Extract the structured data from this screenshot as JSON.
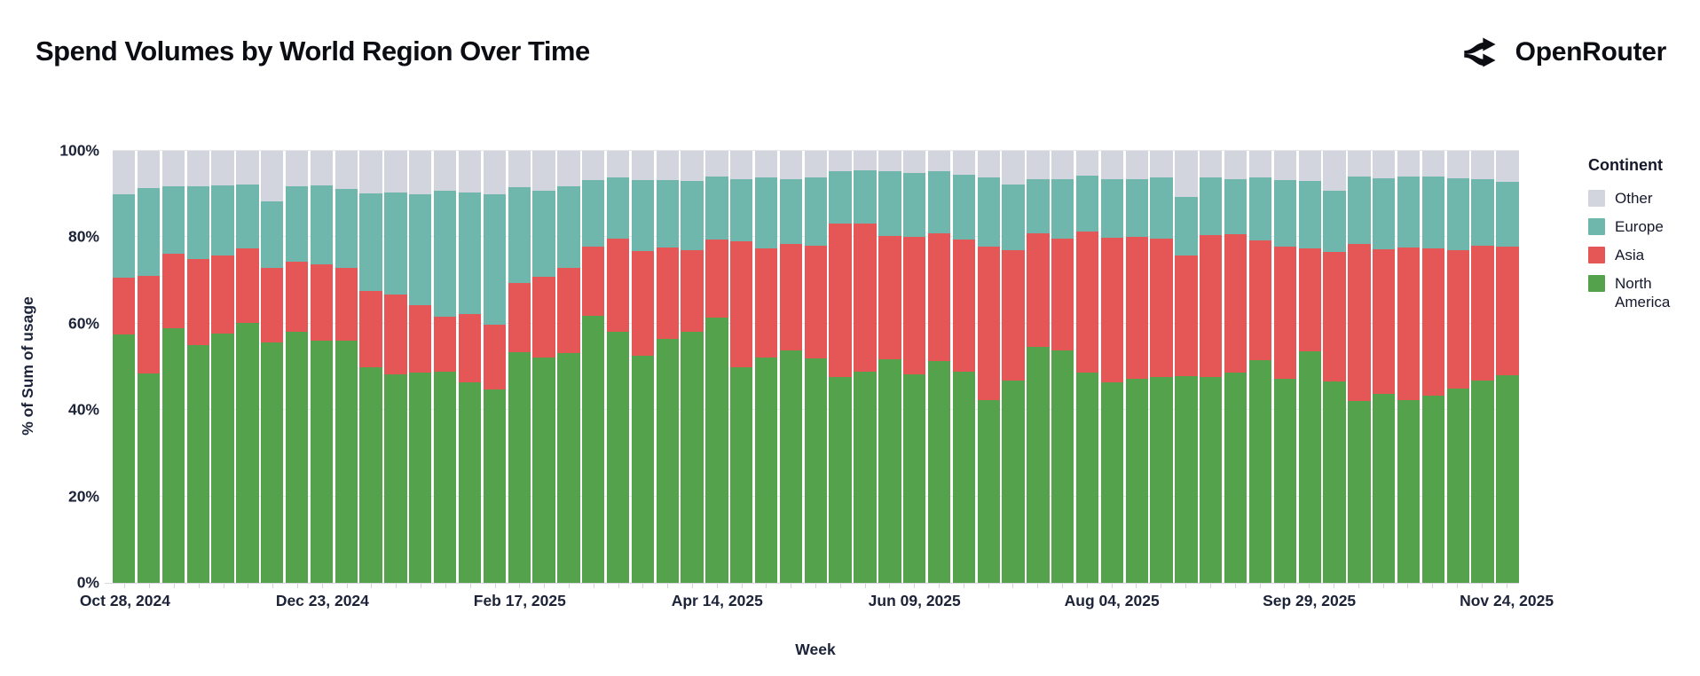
{
  "header": {
    "title": "Spend Volumes by World Region Over Time",
    "brand": {
      "name": "OpenRouter"
    }
  },
  "axes": {
    "y_title": "% of Sum of usage",
    "x_title": "Week",
    "y_ticks": [
      {
        "value": 0,
        "label": "0%"
      },
      {
        "value": 20,
        "label": "20%"
      },
      {
        "value": 40,
        "label": "40%"
      },
      {
        "value": 60,
        "label": "60%"
      },
      {
        "value": 80,
        "label": "80%"
      },
      {
        "value": 100,
        "label": "100%"
      }
    ],
    "x_visible_ticks": [
      {
        "index": 0,
        "label": "Oct 28, 2024"
      },
      {
        "index": 8,
        "label": "Dec 23, 2024"
      },
      {
        "index": 16,
        "label": "Feb 17, 2025"
      },
      {
        "index": 24,
        "label": "Apr 14, 2025"
      },
      {
        "index": 32,
        "label": "Jun 09, 2025"
      },
      {
        "index": 40,
        "label": "Aug 04, 2025"
      },
      {
        "index": 48,
        "label": "Sep 29, 2025"
      },
      {
        "index": 56,
        "label": "Nov 24, 2025"
      }
    ]
  },
  "legend": {
    "title": "Continent",
    "items": [
      {
        "label": "Other",
        "color": "#d2d4de"
      },
      {
        "label": "Europe",
        "color": "#6fb7ad"
      },
      {
        "label": "Asia",
        "color": "#e45756"
      },
      {
        "label": "North America",
        "color": "#54a24b"
      }
    ]
  },
  "colors": {
    "north_america": "#54a24b",
    "asia": "#e45756",
    "europe": "#6fb7ad",
    "other": "#d2d4de",
    "gridline": "#e7e7ec",
    "axis_text": "#1c2338"
  },
  "chart_data": {
    "type": "bar",
    "stacked": true,
    "title": "Spend Volumes by World Region Over Time",
    "xlabel": "Week",
    "ylabel": "% of Sum of usage",
    "ylim": [
      0,
      100
    ],
    "y_unit": "percent",
    "grid": true,
    "legend_title": "Continent",
    "legend_position": "right",
    "stack_order_bottom_to_top": [
      "North America",
      "Asia",
      "Europe",
      "Other"
    ],
    "categories": [
      "Oct 28, 2024",
      "Nov 04, 2024",
      "Nov 11, 2024",
      "Nov 18, 2024",
      "Nov 25, 2024",
      "Dec 02, 2024",
      "Dec 09, 2024",
      "Dec 16, 2024",
      "Dec 23, 2024",
      "Dec 30, 2024",
      "Jan 06, 2025",
      "Jan 13, 2025",
      "Jan 20, 2025",
      "Jan 27, 2025",
      "Feb 03, 2025",
      "Feb 10, 2025",
      "Feb 17, 2025",
      "Feb 24, 2025",
      "Mar 03, 2025",
      "Mar 10, 2025",
      "Mar 17, 2025",
      "Mar 24, 2025",
      "Mar 31, 2025",
      "Apr 07, 2025",
      "Apr 14, 2025",
      "Apr 21, 2025",
      "Apr 28, 2025",
      "May 05, 2025",
      "May 12, 2025",
      "May 19, 2025",
      "May 26, 2025",
      "Jun 02, 2025",
      "Jun 09, 2025",
      "Jun 16, 2025",
      "Jun 23, 2025",
      "Jun 30, 2025",
      "Jul 07, 2025",
      "Jul 14, 2025",
      "Jul 21, 2025",
      "Jul 28, 2025",
      "Aug 04, 2025",
      "Aug 11, 2025",
      "Aug 18, 2025",
      "Aug 25, 2025",
      "Sep 01, 2025",
      "Sep 08, 2025",
      "Sep 15, 2025",
      "Sep 22, 2025",
      "Sep 29, 2025",
      "Oct 06, 2025",
      "Oct 13, 2025",
      "Oct 20, 2025",
      "Oct 27, 2025",
      "Nov 03, 2025",
      "Nov 10, 2025",
      "Nov 17, 2025",
      "Nov 24, 2025"
    ],
    "series": [
      {
        "name": "North America",
        "color": "#54a24b",
        "values": [
          57.6,
          48.5,
          59.0,
          55.0,
          57.7,
          60.2,
          55.7,
          58.1,
          56.1,
          56.0,
          50.0,
          48.2,
          48.7,
          48.8,
          46.5,
          44.7,
          53.3,
          52.2,
          53.2,
          61.9,
          58.1,
          52.6,
          56.5,
          58.2,
          61.4,
          50.0,
          52.2,
          53.7,
          52.0,
          47.6,
          48.9,
          51.8,
          48.2,
          51.3,
          48.9,
          42.3,
          46.8,
          54.6,
          53.8,
          48.7,
          46.5,
          47.2,
          47.6,
          47.9,
          47.6,
          48.7,
          51.6,
          47.2,
          53.5,
          46.7,
          42.1,
          43.8,
          42.3,
          43.4,
          45.0,
          46.8,
          48.0
        ]
      },
      {
        "name": "Asia",
        "color": "#e45756",
        "values": [
          13.0,
          22.5,
          17.2,
          20.0,
          18.0,
          17.3,
          17.1,
          16.3,
          17.6,
          16.9,
          17.6,
          18.6,
          15.6,
          12.9,
          15.7,
          15.1,
          16.2,
          18.6,
          19.8,
          16.0,
          21.5,
          24.2,
          21.1,
          18.8,
          18.0,
          29.0,
          25.2,
          24.8,
          26.1,
          35.5,
          34.2,
          28.5,
          31.9,
          29.6,
          30.5,
          35.6,
          30.3,
          26.4,
          25.8,
          32.6,
          33.3,
          32.9,
          32.0,
          27.8,
          32.9,
          32.0,
          27.6,
          30.6,
          23.9,
          29.8,
          36.4,
          33.4,
          35.3,
          34.0,
          32.0,
          31.2,
          29.8
        ]
      },
      {
        "name": "Europe",
        "color": "#6fb7ad",
        "values": [
          19.4,
          20.3,
          15.5,
          16.7,
          16.3,
          14.7,
          15.5,
          17.3,
          18.4,
          18.3,
          22.5,
          23.6,
          25.6,
          29.1,
          28.1,
          30.1,
          22.0,
          20.0,
          18.8,
          15.3,
          14.2,
          16.4,
          15.6,
          16.0,
          14.6,
          14.4,
          16.4,
          14.9,
          15.8,
          12.1,
          12.3,
          14.9,
          14.8,
          14.3,
          15.1,
          15.9,
          15.2,
          12.5,
          13.9,
          13.0,
          13.6,
          13.4,
          14.2,
          13.6,
          13.4,
          12.7,
          14.6,
          15.4,
          15.6,
          14.3,
          15.6,
          16.4,
          16.4,
          16.6,
          16.7,
          15.5,
          15.1
        ]
      },
      {
        "name": "Other",
        "color": "#d2d4de",
        "values": [
          10.0,
          8.7,
          8.3,
          8.3,
          8.0,
          7.8,
          11.7,
          8.3,
          7.9,
          8.8,
          9.9,
          9.6,
          10.1,
          9.2,
          9.7,
          10.1,
          8.5,
          9.2,
          8.2,
          6.8,
          6.2,
          6.8,
          6.8,
          7.0,
          6.0,
          6.6,
          6.2,
          6.6,
          6.1,
          4.8,
          4.6,
          4.8,
          5.1,
          4.8,
          5.5,
          6.2,
          7.7,
          6.5,
          6.5,
          5.7,
          6.6,
          6.5,
          6.2,
          10.7,
          6.1,
          6.6,
          6.2,
          6.8,
          7.0,
          9.2,
          5.9,
          6.4,
          6.0,
          6.0,
          6.3,
          6.5,
          7.1
        ]
      }
    ]
  }
}
